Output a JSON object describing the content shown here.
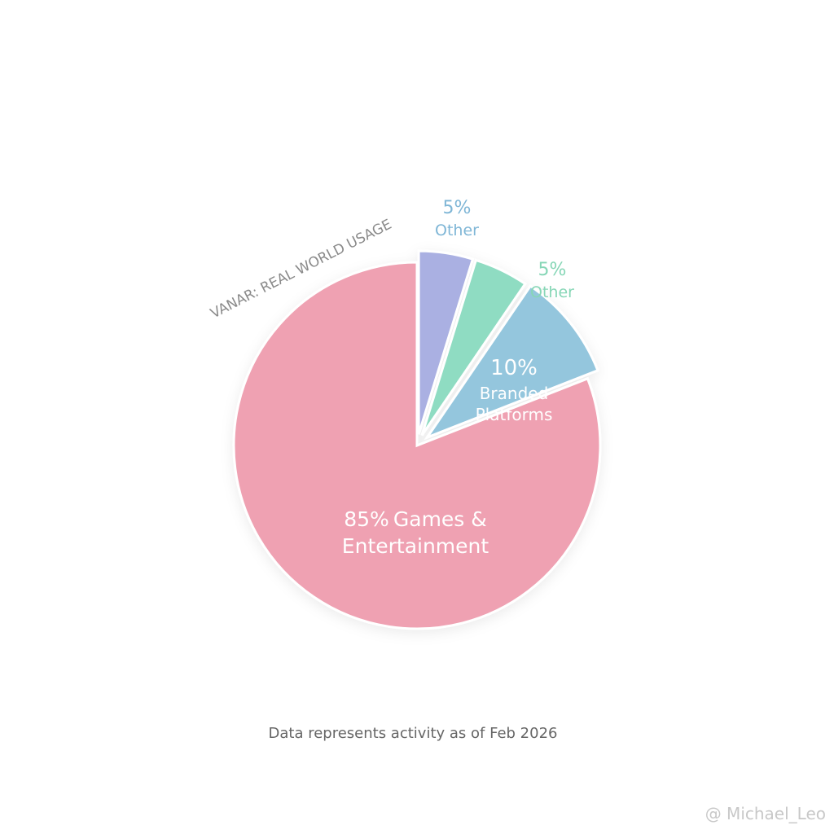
{
  "chart_data": {
    "type": "pie",
    "title": "VANAR: REAL WORLD USAGE",
    "categories": [
      "Other",
      "Other",
      "Branded Platforms",
      "Games & Entertainment"
    ],
    "values": [
      5,
      5,
      10,
      85
    ],
    "value_labels": [
      "5%",
      "5%",
      "10%",
      "85%"
    ],
    "colors": [
      "#aab0e2",
      "#8fdcc2",
      "#94c6dd",
      "#efa1b2"
    ],
    "label_colors": [
      "#7fb6d6",
      "#86d6b6",
      "#ffffff",
      "#ffffff"
    ],
    "footnote": "Data represents activity as of Feb 2026",
    "watermark": "@ Michael_Leo"
  }
}
